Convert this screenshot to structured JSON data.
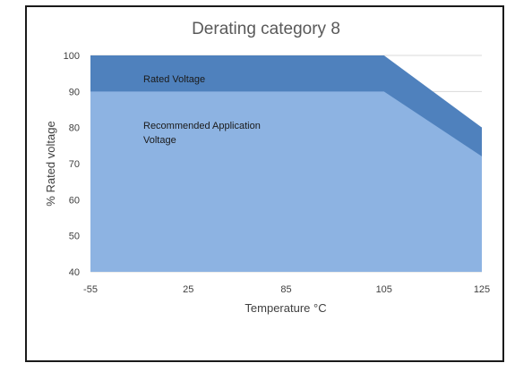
{
  "chart_data": {
    "type": "area",
    "title": "Derating category 8",
    "xlabel": "Temperature °C",
    "ylabel": "% Rated voltage",
    "x_ticks": [
      "-55",
      "25",
      "85",
      "105",
      "125"
    ],
    "x_tick_values": [
      -55,
      25,
      85,
      105,
      125
    ],
    "y_ticks": [
      "40",
      "50",
      "60",
      "70",
      "80",
      "90",
      "100"
    ],
    "y_tick_values": [
      40,
      50,
      60,
      70,
      80,
      90,
      100
    ],
    "ylim": [
      40,
      100
    ],
    "x_scale": "categorical-evenly-spaced",
    "grid": "horizontal",
    "series": [
      {
        "name": "Rated Voltage",
        "color": "#4f81bd",
        "x": [
          -55,
          105,
          125
        ],
        "values": [
          100,
          100,
          80
        ]
      },
      {
        "name": "Recommended Application Voltage",
        "color": "#8db3e2",
        "x": [
          -55,
          105,
          125
        ],
        "values": [
          90,
          90,
          72
        ]
      }
    ],
    "annotations": [
      {
        "text": "Rated Voltage"
      },
      {
        "text": "Recommended Application"
      },
      {
        "text": "Voltage"
      }
    ]
  }
}
